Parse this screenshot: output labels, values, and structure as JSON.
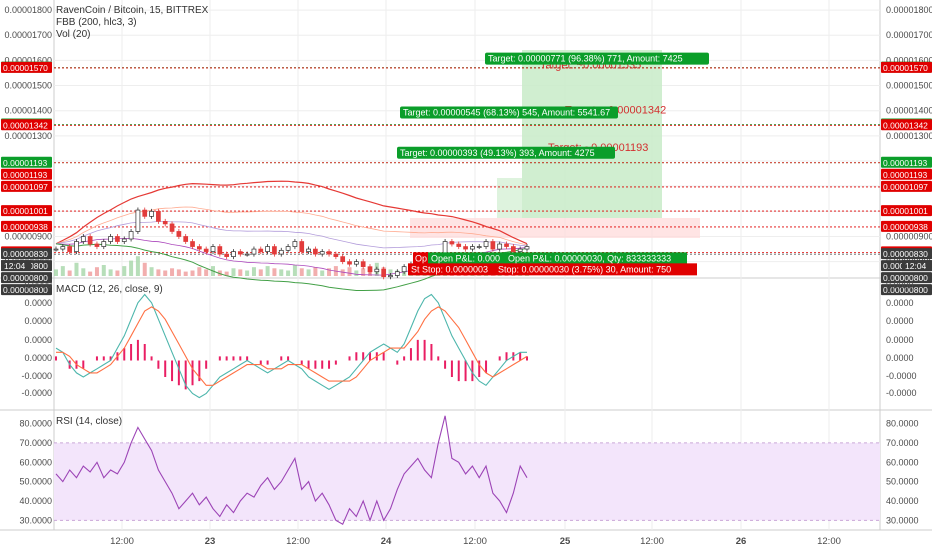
{
  "colors": {
    "up": "#2e2e2e",
    "down": "#e23b3b",
    "green_tag": "#0b9e2a",
    "red_tag": "#e00000",
    "dark_tag": "#3b3b3b",
    "rsi_fill": "#f3e5fb",
    "rsi_line": "#9c44b6",
    "macd_line": "#4db6ac",
    "signal_line": "#ff7043",
    "hist": "#e91e63",
    "profit_zone": "#c8ebc8",
    "grid": "#eeeeee"
  },
  "chart_data": [
    {
      "type": "line",
      "title": "RavenCoin / Bitcoin, 15, BITTREX",
      "indicators": [
        "FBB (200, hlc3, 3)",
        "Vol (20)"
      ],
      "y_ticks": [
        "0.00001800",
        "0.00001700",
        "0.00001600",
        "0.00001500",
        "0.00001400",
        "0.00001300",
        "0.00001200",
        "0.00001100",
        "0.00001000",
        "0.00000900",
        "0.00000800"
      ],
      "ylim": [
        7.35e-06,
        1.84e-05
      ],
      "x_ticks": [
        "12:00",
        "23",
        "12:00",
        "24",
        "12:00",
        "25",
        "12:00",
        "26",
        "12:00"
      ],
      "price_series": [
        850,
        860,
        840,
        880,
        900,
        870,
        860,
        880,
        900,
        880,
        890,
        920,
        1005,
        980,
        1000,
        960,
        950,
        920,
        900,
        880,
        860,
        850,
        840,
        860,
        830,
        820,
        840,
        830,
        830,
        850,
        840,
        860,
        830,
        845,
        860,
        880,
        840,
        850,
        830,
        840,
        830,
        820,
        800,
        790,
        800,
        780,
        760,
        770,
        740,
        745,
        760,
        780,
        790,
        800,
        820,
        800,
        810,
        880,
        870,
        860,
        850,
        860,
        860,
        880,
        850,
        870,
        860,
        840,
        850,
        860
      ],
      "price_scale": 1e-08,
      "left_labels": [
        "0.00001571",
        "0.00001570",
        "0.00001345",
        "0.00001342",
        "0.00001193",
        "0.00001193",
        "0.00001097",
        "0.00001001",
        "0.00000938",
        "0.00000837",
        "0.00000830",
        "0.00000800",
        "0.00000800",
        "0.00000800"
      ],
      "right_labels": [
        "0.00001571",
        "0.00001570",
        "0.00001345",
        "0.00001342",
        "0.00001193",
        "0.00001193",
        "0.00001097",
        "0.00001001",
        "0.00000938",
        "0.00000837",
        "0.00000830",
        "0.00000800",
        "0.00000800",
        "0.00000800"
      ],
      "time_tag": "12:04",
      "targets": [
        {
          "title": "Target: ~0.00001535",
          "label": "Target: 0.00000771 (96.38%) 771, Amount: 7425"
        },
        {
          "title": "Target: ~0.00001342",
          "label": "Target: 0.00000545 (68.13%) 545, Amount: 5541.67"
        },
        {
          "title": "Target: ~0.00001193",
          "label": "Target: 0.00000393 (49.13%) 393, Amount: 4275"
        }
      ],
      "pnl_labels": [
        "Open P&L: 0.000",
        "Open P&L: 0.00000030, Qty: 833333333",
        "Op"
      ],
      "stop_labels": [
        "St Stop: 0.0000003",
        "Stop: 0.00000030 (3.75%) 30, Amount: 750"
      ]
    },
    {
      "type": "line",
      "title": "MACD (12, 26, close, 9)",
      "y_ticks": [
        "0.0000",
        "0.0000",
        "0.0000",
        "0.0000",
        "0.0000",
        "-0.0000",
        "-0.0000"
      ],
      "series": [
        {
          "values": [
            3,
            2,
            -1,
            -3,
            -4,
            -3,
            -2,
            -1,
            0,
            3,
            6,
            10,
            14,
            16,
            14,
            10,
            6,
            2,
            -2,
            -6,
            -8,
            -9,
            -8,
            -6,
            -4,
            -3,
            -2,
            -1,
            0,
            -1,
            -2,
            -3,
            -2,
            -1,
            0,
            -1,
            -2,
            -4,
            -5,
            -6,
            -7,
            -6,
            -5,
            -4,
            -2,
            0,
            2,
            3,
            4,
            3,
            2,
            4,
            8,
            12,
            15,
            16,
            14,
            10,
            6,
            3,
            0,
            -3,
            -5,
            -6,
            -4,
            -2,
            0,
            1,
            2,
            2
          ]
        },
        {
          "values": [
            2,
            2,
            1,
            -1,
            -2,
            -3,
            -3,
            -2,
            -1,
            1,
            3,
            6,
            9,
            12,
            13,
            12,
            10,
            7,
            4,
            1,
            -2,
            -4,
            -6,
            -6,
            -5,
            -4,
            -3,
            -2,
            -1,
            -1,
            -1,
            -2,
            -2,
            -2,
            -1,
            -1,
            -1,
            -2,
            -3,
            -4,
            -5,
            -5,
            -5,
            -5,
            -4,
            -2,
            0,
            1,
            2,
            3,
            3,
            3,
            5,
            7,
            10,
            12,
            13,
            12,
            10,
            8,
            5,
            2,
            -1,
            -3,
            -4,
            -3,
            -2,
            -1,
            0,
            1
          ]
        },
        {
          "values": [
            1,
            0,
            -2,
            -2,
            -2,
            0,
            1,
            1,
            1,
            2,
            3,
            4,
            5,
            4,
            1,
            -2,
            -4,
            -5,
            -6,
            -7,
            -6,
            -5,
            -2,
            0,
            1,
            1,
            1,
            1,
            1,
            0,
            -1,
            -1,
            0,
            1,
            1,
            0,
            -1,
            -2,
            -2,
            -2,
            -2,
            -1,
            0,
            1,
            2,
            2,
            2,
            2,
            2,
            0,
            -1,
            1,
            3,
            5,
            5,
            4,
            1,
            -2,
            -4,
            -5,
            -5,
            -5,
            -4,
            -3,
            0,
            1,
            2,
            2,
            2,
            1
          ]
        }
      ],
      "ylim": [
        -12,
        20
      ]
    },
    {
      "type": "line",
      "title": "RSI (14, close)",
      "y_ticks": [
        "80.0000",
        "70.0000",
        "60.0000",
        "50.0000",
        "40.0000",
        "30.0000"
      ],
      "ylim": [
        25,
        87
      ],
      "band": [
        30,
        70
      ],
      "values": [
        54,
        50,
        56,
        52,
        58,
        55,
        60,
        52,
        56,
        54,
        60,
        70,
        78,
        72,
        66,
        56,
        50,
        44,
        36,
        40,
        44,
        38,
        42,
        36,
        32,
        38,
        34,
        40,
        44,
        42,
        48,
        52,
        46,
        50,
        56,
        62,
        46,
        50,
        40,
        44,
        38,
        30,
        28,
        36,
        32,
        40,
        30,
        40,
        30,
        36,
        46,
        54,
        58,
        62,
        56,
        52,
        70,
        84,
        62,
        60,
        54,
        58,
        52,
        58,
        44,
        40,
        34,
        44,
        58,
        52
      ]
    }
  ]
}
